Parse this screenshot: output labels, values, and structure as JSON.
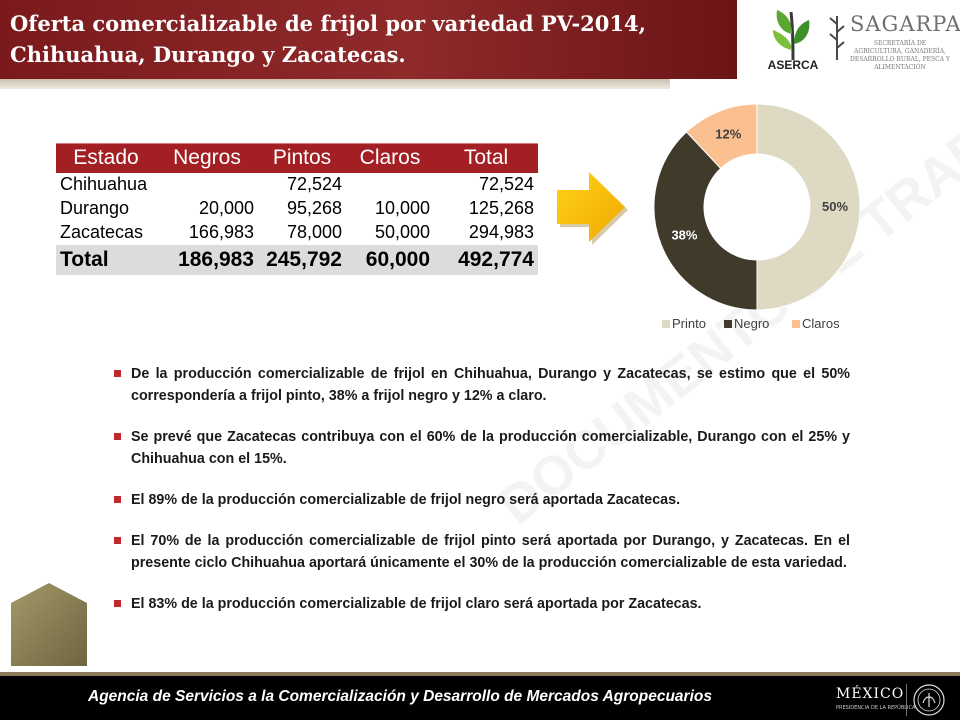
{
  "header": {
    "title_line1": "Oferta comercializable de frijol por variedad  PV-2014,",
    "title_line2": "Chihuahua, Durango y Zacatecas."
  },
  "logos": {
    "aserca": "ASERCA",
    "sagarpa": "SAGARPA",
    "sagarpa_subtitle": "SECRETARÍA DE AGRICULTURA, GANADERÍA, DESARROLLO RURAL, PESCA Y ALIMENTACIÓN"
  },
  "table": {
    "headers": [
      "Estado",
      "Negros",
      "Pintos",
      "Claros",
      "Total"
    ],
    "rows": [
      {
        "estado": "Chihuahua",
        "negros": "",
        "pintos": "72,524",
        "claros": "",
        "total": "72,524"
      },
      {
        "estado": "Durango",
        "negros": "20,000",
        "pintos": "95,268",
        "claros": "10,000",
        "total": "125,268"
      },
      {
        "estado": "Zacatecas",
        "negros": "166,983",
        "pintos": "78,000",
        "claros": "50,000",
        "total": "294,983"
      }
    ],
    "total_row": {
      "estado": "Total",
      "negros": "186,983",
      "pintos": "245,792",
      "claros": "60,000",
      "total": "492,774"
    }
  },
  "chart_data": {
    "type": "pie",
    "categories": [
      "Printo",
      "Negro",
      "Claros"
    ],
    "values": [
      50,
      38,
      12
    ],
    "labels": [
      "50%",
      "38%",
      "12%"
    ],
    "colors": [
      "#ddd9c3",
      "#403a2b",
      "#fac090"
    ],
    "legend_position": "bottom",
    "donut": true
  },
  "bullets": [
    "De la producción comercializable de frijol en Chihuahua, Durango y Zacatecas, se estimo que el 50% correspondería a frijol pinto, 38% a frijol negro y 12% a claro.",
    "Se prevé que Zacatecas contribuya con el 60% de la producción comercializable, Durango con el 25% y Chihuahua con el 15%.",
    "El 89% de la producción comercializable de frijol negro será aportada Zacatecas.",
    "El 70% de la producción comercializable de frijol pinto será aportada por Durango, y Zacatecas. En el presente ciclo Chihuahua aportará únicamente el 30% de la producción comercializable de esta variedad.",
    "El 83% de la producción comercializable de frijol claro será aportada por Zacatecas."
  ],
  "watermark": "DOCUMENTO DE TRABAJO",
  "footer": {
    "agency": "Agencia de Servicios a la Comercialización y Desarrollo de Mercados Agropecuarios",
    "mexico": "MÉXICO",
    "mexico_sub": "PRESIDENCIA DE LA REPÚBLICA"
  },
  "colors": {
    "title_bg": "#8f2a2b",
    "table_header_bg": "#a31f24",
    "total_row_bg": "#dcdcdc",
    "bullet": "#c0282d",
    "arrow": "#f5b800",
    "footer_bg": "#000000"
  }
}
